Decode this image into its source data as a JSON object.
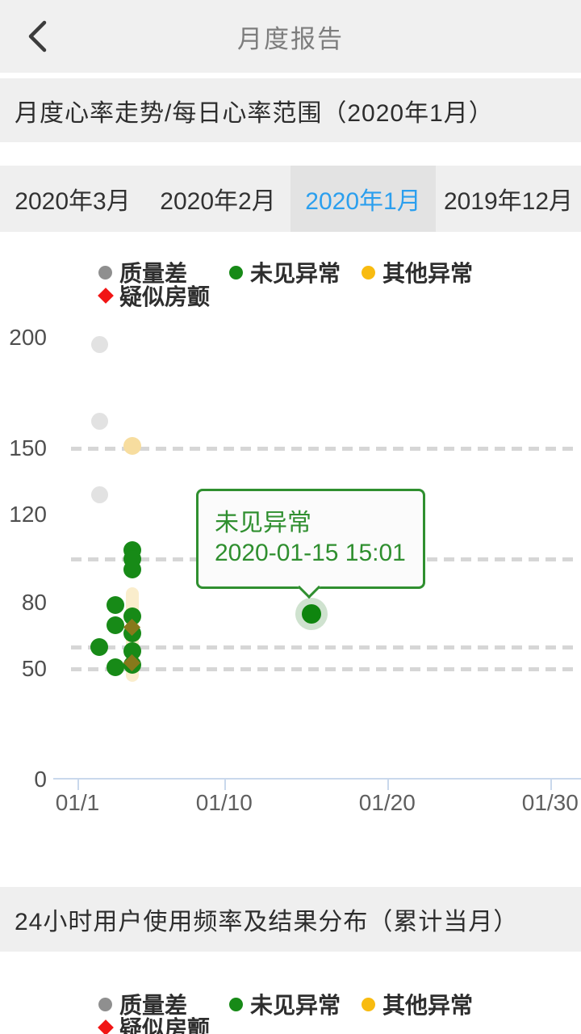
{
  "header": {
    "title": "月度报告",
    "back_icon": "chevron-left"
  },
  "section1": {
    "title": "月度心率走势/每日心率范围（2020年1月）"
  },
  "tabs": [
    {
      "label": "2020年3月",
      "selected": false
    },
    {
      "label": "2020年2月",
      "selected": false
    },
    {
      "label": "2020年1月",
      "selected": true
    },
    {
      "label": "2019年12月",
      "selected": false
    }
  ],
  "colors": {
    "accent_blue": "#2b9fee",
    "green": "#178a17",
    "yellow": "#f8bb10",
    "red": "#f11515",
    "gray_legend": "#8f8f8f",
    "gray_point": "#e2e2e2",
    "pale_yellow": "#f7dd9f",
    "range_bar": "#faedcc",
    "tooltip_green": "#2f8f2f"
  },
  "legend": {
    "items": [
      {
        "key": "quality-poor",
        "label": "质量差",
        "color": "#8f8f8f",
        "shape": "circle"
      },
      {
        "key": "no-abnormality",
        "label": "未见异常",
        "color": "#178a17",
        "shape": "circle"
      },
      {
        "key": "other-abnormality",
        "label": "其他异常",
        "color": "#f8bb10",
        "shape": "circle"
      },
      {
        "key": "suspected-afib",
        "label": "疑似房颤",
        "color": "#f11515",
        "shape": "diamond"
      }
    ]
  },
  "tooltip": {
    "line1": "未见异常",
    "line2": "2020-01-15 15:01"
  },
  "chart_data": {
    "type": "scatter",
    "title": "月度心率走势/每日心率范围（2020年1月）",
    "x_axis": {
      "tick_labels": [
        "01/1",
        "01/10",
        "01/20",
        "01/30"
      ],
      "tick_days": [
        1,
        10,
        20,
        30
      ],
      "range_days": [
        1,
        31
      ]
    },
    "y_axis": {
      "tick_values": [
        200,
        150,
        120,
        80,
        50,
        0
      ],
      "range": [
        0,
        210
      ]
    },
    "reference_lines": [
      150,
      100,
      60,
      50
    ],
    "grid": "dashed-horizontal",
    "legend_position": "top",
    "series": [
      {
        "name": "质量差",
        "shape": "circle",
        "color": "#e2e2e2",
        "size": 21,
        "points": [
          {
            "day": 2,
            "value": 197
          },
          {
            "day": 2,
            "value": 162
          },
          {
            "day": 2,
            "value": 129
          }
        ]
      },
      {
        "name": "其他异常",
        "shape": "circle",
        "color": "#f7dd9f",
        "size": 22,
        "points": [
          {
            "day": 4,
            "value": 151
          }
        ]
      },
      {
        "name": "未见异常",
        "shape": "circle",
        "color": "#178a17",
        "size": 22,
        "points": [
          {
            "day": 4,
            "value": 104
          },
          {
            "day": 4,
            "value": 100
          },
          {
            "day": 4,
            "value": 95
          },
          {
            "day": 3,
            "value": 79
          },
          {
            "day": 4,
            "value": 74
          },
          {
            "day": 3,
            "value": 70
          },
          {
            "day": 4,
            "value": 66
          },
          {
            "day": 2,
            "value": 60
          },
          {
            "day": 4,
            "value": 58
          },
          {
            "day": 4,
            "value": 52
          },
          {
            "day": 3,
            "value": 51
          }
        ]
      },
      {
        "name": "疑似房颤",
        "shape": "diamond",
        "color": "#87791b",
        "size": 15,
        "points": [
          {
            "day": 4,
            "value": 69
          },
          {
            "day": 4,
            "value": 53
          }
        ]
      }
    ],
    "range_bars": [
      {
        "day": 4,
        "low": 47,
        "high": 84,
        "color": "#faedcc"
      }
    ],
    "selected_point": {
      "day": 15,
      "value": 75,
      "label": "未见异常",
      "datetime": "2020-01-15 15:01"
    }
  },
  "section2": {
    "title": "24小时用户使用频率及结果分布（累计当月）"
  }
}
